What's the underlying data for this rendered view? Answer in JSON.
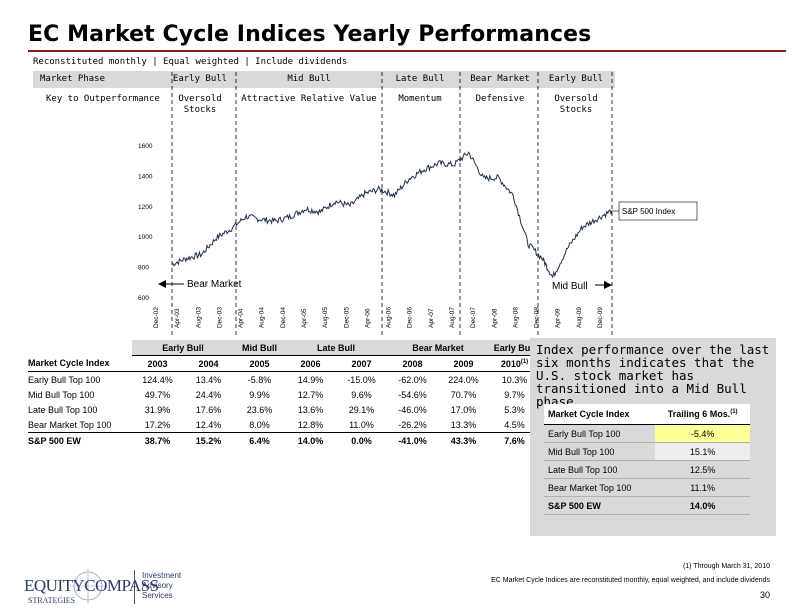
{
  "title": "EC Market Cycle Indices Yearly Performances",
  "subtitle": "Reconstituted monthly | Equal weighted | Include dividends",
  "phase_table": {
    "row1_label": "Market Phase",
    "row2_label": "Key to Outperformance",
    "phases": [
      "Early Bull",
      "Mid Bull",
      "Late Bull",
      "Bear Market",
      "Early Bull"
    ],
    "keys": [
      "Oversold\nStocks",
      "Attractive Relative Value",
      "Momentum",
      "Defensive",
      "Oversold\nStocks"
    ]
  },
  "chart_data": {
    "type": "line",
    "title": "",
    "series": [
      {
        "name": "S&P 500 Index",
        "x": [
          "2002-10",
          "2003-01",
          "2003-04",
          "2003-07",
          "2003-10",
          "2004-01",
          "2004-04",
          "2004-07",
          "2004-10",
          "2005-01",
          "2005-04",
          "2005-07",
          "2005-10",
          "2006-01",
          "2006-04",
          "2006-07",
          "2006-10",
          "2007-01",
          "2007-04",
          "2007-07",
          "2007-10",
          "2008-01",
          "2008-04",
          "2008-07",
          "2008-10",
          "2009-01",
          "2009-03",
          "2009-06",
          "2009-09",
          "2009-12",
          "2010-03"
        ],
        "values": [
          815,
          855,
          880,
          990,
          1050,
          1130,
          1110,
          1100,
          1130,
          1180,
          1160,
          1230,
          1200,
          1280,
          1310,
          1270,
          1380,
          1440,
          1480,
          1470,
          1550,
          1380,
          1385,
          1270,
          950,
          850,
          730,
          920,
          1060,
          1115,
          1170
        ]
      }
    ],
    "x_tick_labels": [
      "Dec-02",
      "Apr-03",
      "Aug-03",
      "Dec-03",
      "Apr-04",
      "Aug-04",
      "Dec-04",
      "Apr-05",
      "Aug-05",
      "Dec-05",
      "Apr-06",
      "Aug-06",
      "Dec-06",
      "Apr-07",
      "Aug-07",
      "Dec-07",
      "Apr-08",
      "Aug-08",
      "Dec-08",
      "Apr-09",
      "Aug-09",
      "Dec-09"
    ],
    "y_ticks": [
      600,
      800,
      1000,
      1200,
      1400,
      1600
    ],
    "ylim": [
      600,
      1600
    ],
    "annotations": {
      "index_label": "S&P 500 Index",
      "bear_label": "Bear Market",
      "mid_label": "Mid Bull"
    }
  },
  "perf_table": {
    "phase_header": [
      "Early Bull",
      "Mid Bull",
      "Late Bull",
      "Bear Market",
      "Early Bull"
    ],
    "col_header": "Market Cycle Index",
    "years": [
      "2003",
      "2004",
      "2005",
      "2006",
      "2007",
      "2008",
      "2009",
      "2010"
    ],
    "footnote_mark": "(1)",
    "rows": [
      {
        "name": "Early Bull Top 100",
        "values": [
          "124.4%",
          "13.4%",
          "-5.8%",
          "14.9%",
          "-15.0%",
          "-62.0%",
          "224.0%",
          "10.3%"
        ]
      },
      {
        "name": "Mid Bull Top 100",
        "values": [
          "49.7%",
          "24.4%",
          "9.9%",
          "12.7%",
          "9.6%",
          "-54.6%",
          "70.7%",
          "9.7%"
        ]
      },
      {
        "name": "Late Bull Top 100",
        "values": [
          "31.9%",
          "17.6%",
          "23.6%",
          "13.6%",
          "29.1%",
          "-46.0%",
          "17.0%",
          "5.3%"
        ]
      },
      {
        "name": "Bear Market Top 100",
        "values": [
          "17.2%",
          "12.4%",
          "8.0%",
          "12.8%",
          "11.0%",
          "-26.2%",
          "13.3%",
          "4.5%"
        ]
      },
      {
        "name": "S&P 500 EW",
        "values": [
          "38.7%",
          "15.2%",
          "6.4%",
          "14.0%",
          "0.0%",
          "-41.0%",
          "43.3%",
          "7.6%"
        ]
      }
    ]
  },
  "side_panel": {
    "text": "Index performance over the last six months indicates that the U.S. stock market has transitioned into a Mid Bull phase",
    "col1": "Market Cycle Index",
    "col2": "Trailing 6 Mos.",
    "col2_mark": "(1)",
    "rows": [
      {
        "name": "Early Bull Top 100",
        "value": "-5.4%"
      },
      {
        "name": "Mid Bull Top 100",
        "value": "15.1%"
      },
      {
        "name": "Late Bull Top 100",
        "value": "12.5%"
      },
      {
        "name": "Bear Market Top 100",
        "value": "11.1%"
      },
      {
        "name": "S&P 500 EW",
        "value": "14.0%"
      }
    ],
    "highlight_color": "#ffff99"
  },
  "footer": {
    "note1": "(1) Through March 31, 2010",
    "note2": "EC Market Cycle Indices are reconstituted monthly, equal weighted, and include dividends",
    "page": "30",
    "logo_main": "EQUITYCOMPASS",
    "logo_sub": "STRATEGIES",
    "logo_right": [
      "Investment",
      "Advisory",
      "Services"
    ]
  }
}
